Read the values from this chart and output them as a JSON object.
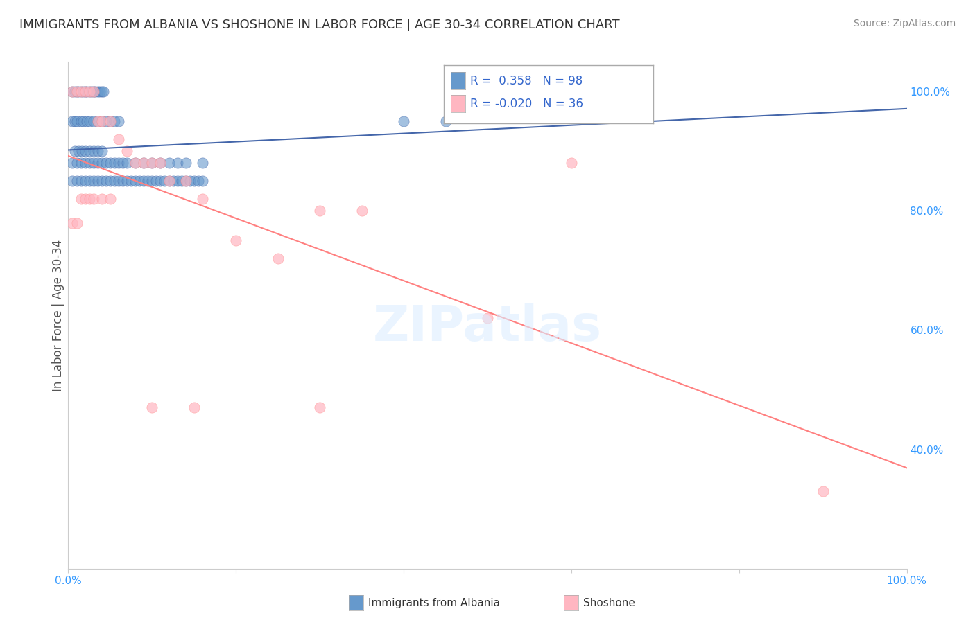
{
  "title": "IMMIGRANTS FROM ALBANIA VS SHOSHONE IN LABOR FORCE | AGE 30-34 CORRELATION CHART",
  "source": "Source: ZipAtlas.com",
  "xlabel": "",
  "ylabel": "In Labor Force | Age 30-34",
  "xlim": [
    0.0,
    1.0
  ],
  "ylim": [
    0.2,
    1.05
  ],
  "albania_R": 0.358,
  "albania_N": 98,
  "shoshone_R": -0.02,
  "shoshone_N": 36,
  "albania_color": "#6699CC",
  "shoshone_color": "#FFB6C1",
  "albania_trend_color": "#4466AA",
  "shoshone_trend_color": "#FF8080",
  "grid_color": "#CCCCCC",
  "background_color": "#FFFFFF",
  "title_color": "#333333",
  "source_color": "#888888",
  "legend_R_color": "#3366CC",
  "right_ytick_color": "#3399FF",
  "right_yticks": [
    0.4,
    0.6,
    0.8,
    1.0
  ],
  "right_yticklabels": [
    "40.0%",
    "60.0%",
    "80.0%",
    "100.0%"
  ],
  "bottom_xticks": [
    0.0,
    0.2,
    0.4,
    0.6,
    0.8,
    1.0
  ],
  "bottom_xticklabels": [
    "0.0%",
    "",
    "",
    "",
    "",
    "100.0%"
  ],
  "albania_x": [
    0.005,
    0.008,
    0.01,
    0.012,
    0.015,
    0.018,
    0.02,
    0.022,
    0.025,
    0.028,
    0.03,
    0.032,
    0.035,
    0.038,
    0.04,
    0.042,
    0.005,
    0.008,
    0.01,
    0.015,
    0.018,
    0.022,
    0.025,
    0.03,
    0.035,
    0.04,
    0.045,
    0.05,
    0.055,
    0.06,
    0.008,
    0.012,
    0.016,
    0.02,
    0.025,
    0.03,
    0.035,
    0.04,
    0.005,
    0.01,
    0.015,
    0.02,
    0.025,
    0.03,
    0.035,
    0.04,
    0.045,
    0.05,
    0.055,
    0.06,
    0.065,
    0.07,
    0.08,
    0.09,
    0.1,
    0.11,
    0.12,
    0.13,
    0.14,
    0.16,
    0.005,
    0.01,
    0.015,
    0.02,
    0.025,
    0.03,
    0.035,
    0.04,
    0.045,
    0.05,
    0.055,
    0.06,
    0.065,
    0.07,
    0.075,
    0.08,
    0.085,
    0.09,
    0.095,
    0.1,
    0.105,
    0.11,
    0.115,
    0.12,
    0.125,
    0.13,
    0.135,
    0.14,
    0.145,
    0.15,
    0.155,
    0.16,
    0.4,
    0.45,
    0.5,
    0.52,
    0.53,
    0.54
  ],
  "albania_y": [
    1.0,
    1.0,
    1.0,
    1.0,
    1.0,
    1.0,
    1.0,
    1.0,
    1.0,
    1.0,
    1.0,
    1.0,
    1.0,
    1.0,
    1.0,
    1.0,
    0.95,
    0.95,
    0.95,
    0.95,
    0.95,
    0.95,
    0.95,
    0.95,
    0.95,
    0.95,
    0.95,
    0.95,
    0.95,
    0.95,
    0.9,
    0.9,
    0.9,
    0.9,
    0.9,
    0.9,
    0.9,
    0.9,
    0.88,
    0.88,
    0.88,
    0.88,
    0.88,
    0.88,
    0.88,
    0.88,
    0.88,
    0.88,
    0.88,
    0.88,
    0.88,
    0.88,
    0.88,
    0.88,
    0.88,
    0.88,
    0.88,
    0.88,
    0.88,
    0.88,
    0.85,
    0.85,
    0.85,
    0.85,
    0.85,
    0.85,
    0.85,
    0.85,
    0.85,
    0.85,
    0.85,
    0.85,
    0.85,
    0.85,
    0.85,
    0.85,
    0.85,
    0.85,
    0.85,
    0.85,
    0.85,
    0.85,
    0.85,
    0.85,
    0.85,
    0.85,
    0.85,
    0.85,
    0.85,
    0.85,
    0.85,
    0.85,
    0.95,
    0.95,
    1.0,
    1.0,
    1.0,
    1.0
  ],
  "shoshone_x": [
    0.005,
    0.01,
    0.015,
    0.02,
    0.025,
    0.03,
    0.035,
    0.04,
    0.05,
    0.06,
    0.07,
    0.08,
    0.09,
    0.1,
    0.11,
    0.12,
    0.14,
    0.16,
    0.2,
    0.25,
    0.3,
    0.35,
    0.5,
    0.6,
    0.005,
    0.01,
    0.015,
    0.02,
    0.025,
    0.03,
    0.04,
    0.05,
    0.1,
    0.15,
    0.3,
    0.9
  ],
  "shoshone_y": [
    1.0,
    1.0,
    1.0,
    1.0,
    1.0,
    1.0,
    0.95,
    0.95,
    0.95,
    0.92,
    0.9,
    0.88,
    0.88,
    0.88,
    0.88,
    0.85,
    0.85,
    0.82,
    0.75,
    0.72,
    0.8,
    0.8,
    0.62,
    0.88,
    0.78,
    0.78,
    0.82,
    0.82,
    0.82,
    0.82,
    0.82,
    0.82,
    0.47,
    0.47,
    0.47,
    0.33
  ]
}
